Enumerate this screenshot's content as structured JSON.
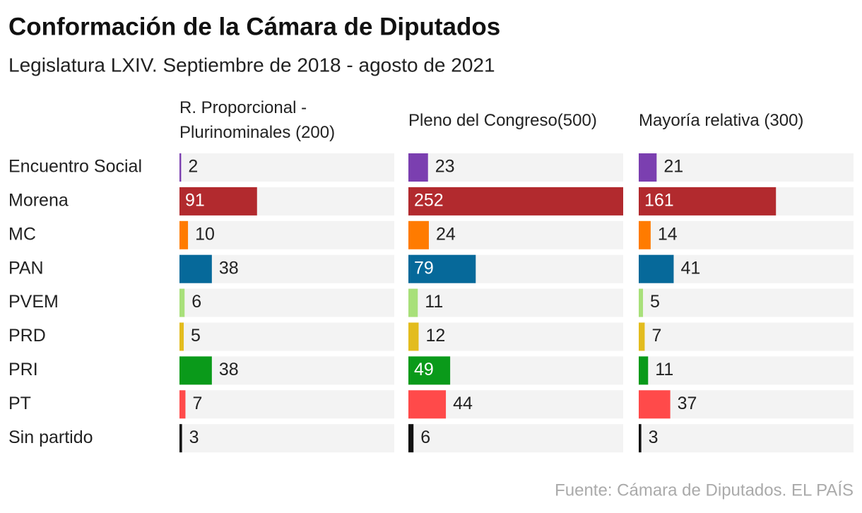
{
  "title": "Conformación de la Cámara de Diputados",
  "subtitle": "Legislatura LXIV. Septiembre de 2018 - agosto de 2021",
  "source": "Fuente: Cámara de Diputados. EL PAÍS",
  "chart_data": {
    "type": "bar",
    "categories": [
      "Encuentro Social",
      "Morena",
      "MC",
      "PAN",
      "PVEM",
      "PRD",
      "PRI",
      "PT",
      "Sin partido"
    ],
    "colors": [
      "#7b3fb0",
      "#b22a2e",
      "#ff7b00",
      "#06699a",
      "#a8e07a",
      "#e3bc1e",
      "#0a9a1a",
      "#ff4a4a",
      "#111111"
    ],
    "xlim": [
      0,
      252
    ],
    "series": [
      {
        "name": "R. Proporcional - Plurinominales (200)",
        "values": [
          2,
          91,
          10,
          38,
          6,
          5,
          38,
          7,
          3
        ]
      },
      {
        "name": "Pleno del Congreso(500)",
        "values": [
          23,
          252,
          24,
          79,
          11,
          12,
          49,
          44,
          6
        ]
      },
      {
        "name": "Mayoría relativa (300)",
        "values": [
          21,
          161,
          14,
          41,
          5,
          7,
          11,
          37,
          3
        ]
      }
    ]
  }
}
